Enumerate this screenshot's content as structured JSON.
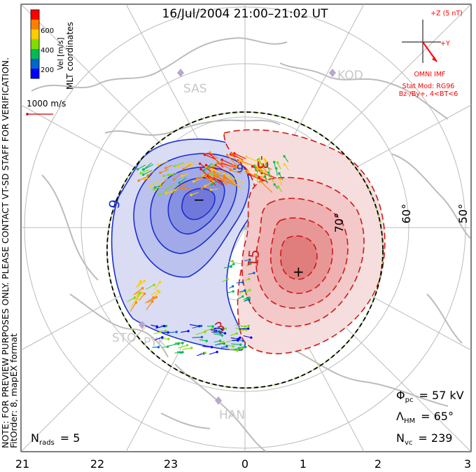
{
  "title": "16/Jul/2004 21:00–21:02 UT",
  "side_note": {
    "line1": "NOTE: FOR PREVIEW PURPOSES ONLY. PLEASE CONTACT VT-SD STAFF FOR VERIFICATION.",
    "line2": "FitOrder: 8, mapEX format"
  },
  "coordinates_label": "MLT coordinates",
  "velocity_scale": {
    "label": "Vel [m/s]",
    "ticks": [
      "600",
      "400",
      "200"
    ],
    "colors": [
      "#ff0000",
      "#ff7f00",
      "#ffcc00",
      "#7fdd00",
      "#00bb55",
      "#0066cc",
      "#0000ff"
    ]
  },
  "reference_vector": {
    "label": "1000 m/s",
    "color": "#cc0000"
  },
  "imf": {
    "z_label": "+Z (5 nT)",
    "y_label": "+Y",
    "source": "OMNI IMF",
    "model": "Stat Mod: RG96",
    "condition": "Bz-/By+, 4<BT<6",
    "color": "#ff0000"
  },
  "stations": [
    {
      "name": "SAS"
    },
    {
      "name": "KOD"
    },
    {
      "name": "STO"
    },
    {
      "name": "PYK"
    },
    {
      "name": "HAN"
    }
  ],
  "latitude_labels": [
    "70°",
    "60°",
    "50°"
  ],
  "contour_labels": {
    "negative": [
      "-9",
      "-9",
      "-3"
    ],
    "positive": [
      "-3",
      "15"
    ]
  },
  "extrema": {
    "min": "−",
    "max": "+"
  },
  "stats": {
    "phi_pc": {
      "symbol": "Φ",
      "sub": "pc",
      "value": "= 57 kV"
    },
    "lambda_hm": {
      "symbol": "Λ",
      "sub": "HM",
      "value": "= 65°"
    },
    "n_vc": {
      "symbol": "N",
      "sub": "vc",
      "value": "= 239"
    },
    "n_rads": {
      "symbol": "N",
      "sub": "rads",
      "value": "= 5"
    }
  },
  "mlt_axis": [
    "21",
    "22",
    "23",
    "0",
    "1",
    "2",
    "3"
  ],
  "colors": {
    "negative_cell": "#1a2fd0",
    "positive_cell": "#e02020",
    "grid": "#bbbbbb",
    "coast": "#bcbcbc",
    "station": "#b9a6cf"
  }
}
